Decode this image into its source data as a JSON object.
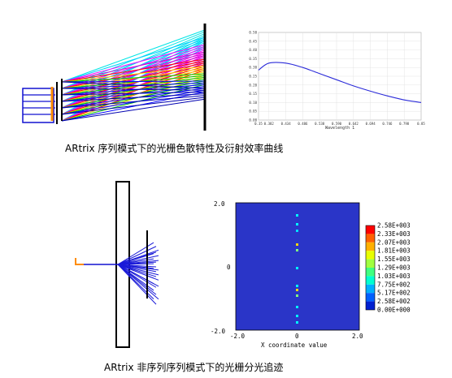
{
  "captions": {
    "top": "ARtrix 序列模式下的光栅色散特性及衍射效率曲线",
    "bottom": "ARtrix 非序列序列模式下的光栅分光追迹"
  },
  "efficiency_chart": {
    "x_axis_label": "Wavelength 1",
    "y_ticks": [
      "0.50",
      "0.45",
      "0.40",
      "0.35",
      "0.30",
      "0.25",
      "0.20",
      "0.15",
      "0.10",
      "0.05",
      "0.00"
    ],
    "x_ticks": [
      "0.35",
      "0.382",
      "0.434",
      "0.486",
      "0.538",
      "0.590",
      "0.642",
      "0.694",
      "0.746",
      "0.798",
      "0.85"
    ],
    "curve_color": "#2b2bd9"
  },
  "intensity_map": {
    "y_ticks": [
      "2.0",
      "0",
      "-2.0"
    ],
    "x_ticks": [
      "-2.0",
      "0",
      "2.0"
    ],
    "x_axis_label": "X coordinate value",
    "colorbar_labels": [
      "2.58E+003",
      "2.33E+003",
      "2.07E+003",
      "1.81E+003",
      "1.55E+003",
      "1.29E+003",
      "1.03E+003",
      "7.75E+002",
      "5.17E+002",
      "2.58E+002",
      "0.00E+000"
    ],
    "background_color": "#2a35c8"
  },
  "chart_data": {
    "type": "line",
    "x": [
      0.35,
      0.382,
      0.434,
      0.486,
      0.538,
      0.59,
      0.642,
      0.694,
      0.746,
      0.798,
      0.85
    ],
    "series": [
      {
        "values": [
          0.285,
          0.325,
          0.325,
          0.3,
          0.265,
          0.23,
          0.195,
          0.165,
          0.138,
          0.115,
          0.1
        ]
      }
    ],
    "xlabel": "Wavelength 1",
    "ylabel": "",
    "xlim": [
      0.35,
      0.85
    ],
    "ylim": [
      0.0,
      0.5
    ],
    "grid": true
  }
}
